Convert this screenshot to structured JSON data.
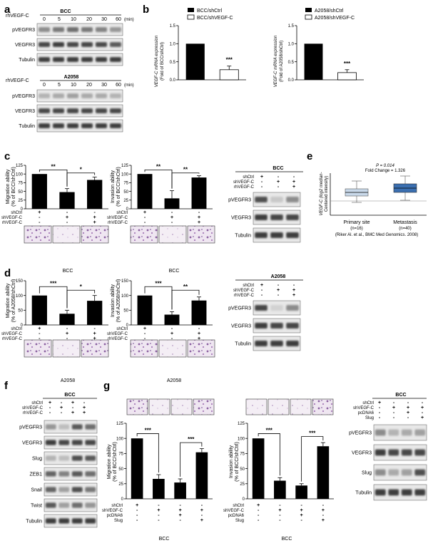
{
  "panels": {
    "a": {
      "label": "a",
      "treat_label": "rhVEGF-C",
      "unit": "(min)",
      "timepoints": [
        "0",
        "5",
        "10",
        "20",
        "30",
        "60"
      ],
      "blocks": [
        {
          "cell": "BCC",
          "rows": [
            "pVEGFR3",
            "VEGFR3",
            "Tubulin"
          ]
        },
        {
          "cell": "A2058",
          "rows": [
            "pVEGFR3",
            "VEGFR3",
            "Tubulin"
          ]
        }
      ]
    },
    "b": {
      "label": "b",
      "chart1_ylabel1": "VEGF-C mRNA expression",
      "chart1_ylabel2": "(Fold of BCC/shCtrl)",
      "chart2_ylabel1": "VEGF-C mRNA expression",
      "chart2_ylabel2": "(Fold of A2058/shCtrl)",
      "legend1": [
        "BCC/shCtrl",
        "BCC/shVEGF-C"
      ],
      "legend2": [
        "A2058/shCtrl",
        "A2058/shVEGF-C"
      ],
      "sig": "***",
      "yticks": [
        "0.0",
        "0.5",
        "1.0",
        "1.5"
      ]
    },
    "c": {
      "label": "c",
      "mig_ylabel1": "Migration ability",
      "mig_ylabel2": "(% of BCC/shCtrl)",
      "inv_ylabel1": "Invasion ability",
      "inv_ylabel2": "(% of BCC/shCtrl)",
      "sig_mig": [
        "**",
        "*"
      ],
      "sig_inv": [
        "**",
        "**"
      ],
      "yticks": [
        "0",
        "25",
        "50",
        "75",
        "100",
        "125"
      ],
      "rows": [
        "shCtrl",
        "shVEGF-C",
        "rhVEGF-C"
      ],
      "signs": [
        [
          "+",
          "-",
          "-"
        ],
        [
          "-",
          "+",
          "+"
        ],
        [
          "-",
          "-",
          "+"
        ]
      ],
      "cell": "BCC",
      "blot_rows": [
        "pVEGFR3",
        "VEGFR3",
        "Tubulin"
      ]
    },
    "d": {
      "label": "d",
      "mig_ylabel1": "Migration ability",
      "mig_ylabel2": "(% of A2058/shCtrl)",
      "inv_ylabel1": "Invasion ability",
      "inv_ylabel2": "(% of A2058/shCtrl)",
      "sig_mig": [
        "***",
        "*"
      ],
      "sig_inv": [
        "***",
        "**"
      ],
      "yticks": [
        "0",
        "50",
        "100",
        "150"
      ],
      "rows": [
        "shCtrl",
        "shVEGF-C",
        "rhVEGF-C"
      ],
      "signs": [
        [
          "+",
          "-",
          "-"
        ],
        [
          "-",
          "+",
          "+"
        ],
        [
          "-",
          "-",
          "+"
        ]
      ],
      "cell": "A2058",
      "blot_rows": [
        "pVEGFR3",
        "VEGFR3",
        "Tubulin"
      ]
    },
    "e": {
      "label": "e",
      "pvalue": "P = 0.014",
      "fold": "Fold Change = 1.326",
      "ylabel1": "VEGF-C (log2 median-",
      "ylabel2": "Centered intensity)",
      "groups": [
        "Primary site",
        "Metastasis"
      ],
      "ns": [
        "(n=16)",
        "(n=40)"
      ],
      "citation": "(Riker Al. et al., BMC Med Genomics. 2008)"
    },
    "f": {
      "label": "f",
      "cell": "BCC",
      "rows": [
        "shCtrl",
        "shVEGF-C",
        "rhVEGF-C"
      ],
      "signs": [
        [
          "+",
          "-",
          "+",
          "-"
        ],
        [
          "-",
          "+",
          "-",
          "+"
        ],
        [
          "-",
          "-",
          "+",
          "+"
        ]
      ],
      "blot_rows": [
        "pVEGFR3",
        "VEGFR3",
        "Slug",
        "ZEB1",
        "Snail",
        "Twist",
        "Tubulin"
      ]
    },
    "g": {
      "label": "g",
      "mig_ylabel1": "Migration ability",
      "mig_ylabel2": "(% of BCC/shCtrl)",
      "inv_ylabel1": "Invasion ability",
      "inv_ylabel2": "(% of BCC/shCtrl)",
      "sig": [
        "***",
        "***"
      ],
      "yticks": [
        "0",
        "25",
        "50",
        "75",
        "100",
        "125"
      ],
      "rows": [
        "shCtrl",
        "shVEGF-C",
        "pcDNA6",
        "Slug"
      ],
      "signs": [
        [
          "+",
          "-",
          "-",
          "-"
        ],
        [
          "-",
          "+",
          "+",
          "+"
        ],
        [
          "-",
          "-",
          "+",
          "-"
        ],
        [
          "-",
          "-",
          "-",
          "+"
        ]
      ],
      "cell": "BCC",
      "blot_rows": [
        "pVEGFR3",
        "VEGFR3",
        "Slug",
        "Tubulin"
      ]
    }
  },
  "chart_data": [
    {
      "type": "bar",
      "categories": [
        "BCC/shCtrl",
        "BCC/shVEGF-C"
      ],
      "values": [
        1.0,
        0.28
      ],
      "errors": [
        0,
        0.1
      ],
      "ylim": [
        0,
        1.5
      ]
    },
    {
      "type": "bar",
      "categories": [
        "A2058/shCtrl",
        "A2058/shVEGF-C"
      ],
      "values": [
        1.0,
        0.2
      ],
      "errors": [
        0,
        0.08
      ],
      "ylim": [
        0,
        1.5
      ]
    },
    {
      "type": "bar",
      "categories": [
        "1",
        "2",
        "3"
      ],
      "values": [
        100,
        48,
        83
      ],
      "errors": [
        0,
        10,
        8
      ],
      "ylim": [
        0,
        125
      ]
    },
    {
      "type": "bar",
      "categories": [
        "1",
        "2",
        "3"
      ],
      "values": [
        100,
        30,
        90
      ],
      "errors": [
        0,
        22,
        5
      ],
      "ylim": [
        0,
        125
      ]
    },
    {
      "type": "bar",
      "categories": [
        "1",
        "2",
        "3"
      ],
      "values": [
        100,
        38,
        82
      ],
      "errors": [
        0,
        12,
        18
      ],
      "ylim": [
        0,
        150
      ]
    },
    {
      "type": "bar",
      "categories": [
        "1",
        "2",
        "3"
      ],
      "values": [
        100,
        35,
        83
      ],
      "errors": [
        0,
        10,
        12
      ],
      "ylim": [
        0,
        150
      ]
    },
    {
      "type": "bar",
      "categories": [
        "1",
        "2",
        "3",
        "4"
      ],
      "values": [
        100,
        33,
        27,
        77
      ],
      "errors": [
        0,
        7,
        6,
        6
      ],
      "ylim": [
        0,
        125
      ]
    },
    {
      "type": "bar",
      "categories": [
        "1",
        "2",
        "3",
        "4"
      ],
      "values": [
        100,
        30,
        22,
        87
      ],
      "errors": [
        0,
        5,
        3,
        6
      ],
      "ylim": [
        0,
        125
      ]
    }
  ]
}
